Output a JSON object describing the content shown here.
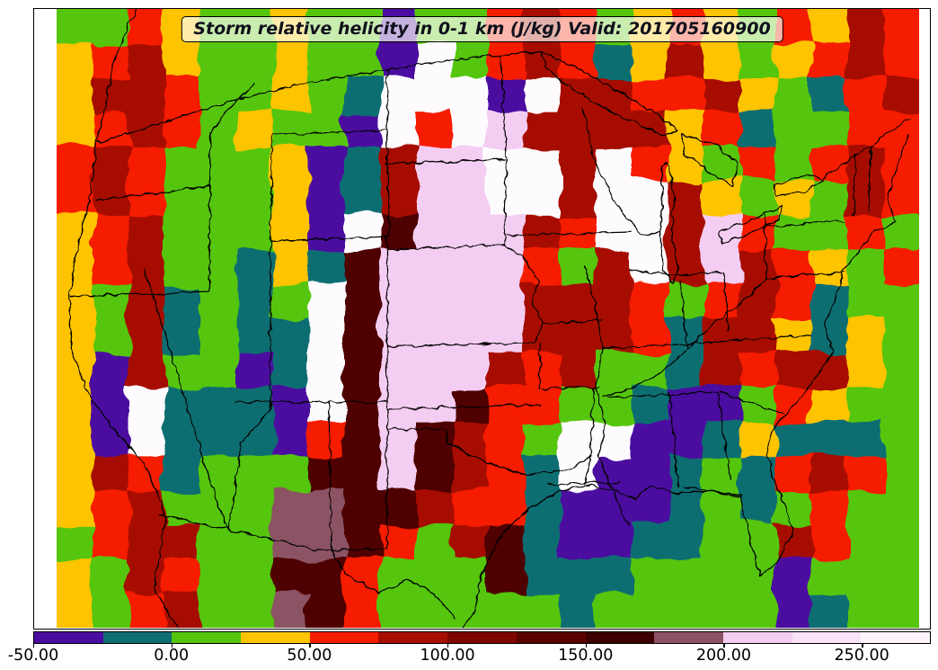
{
  "figure": {
    "title": "Storm relative helicity in 0-1 km (J/kg) Valid: 201705160900",
    "background_color": "#ffffff",
    "frame_border_color": "#000000"
  },
  "map": {
    "description": "Filled-contour map of 0-1 km storm relative helicity (J/kg) over the contiguous United States with state borders, coastlines and Great Lakes outlines",
    "border_line_color": "#000000",
    "palette": {
      "P": "#4B0CA0",
      "T": "#0E6E72",
      "g": "#55C60D",
      "y": "#FFC403",
      "r": "#F51D00",
      "R": "#A60E00",
      "m": "#4F0102",
      "M": "#8B5264",
      "p": "#F4CDF2",
      "W": "#FDFBFE"
    },
    "grid": [
      "ggryggyggPggrRrgyrygryRr",
      "yrRyggyggPWgrRrTyRygyrRr",
      "yRRrggygTWWWPWRRrrRygTrR",
      "yrRrgyggPWrWpRRRRyrTggrr",
      "rRrgggyPTRppWWRWrygrgrRr",
      "rRrgggyPTRppWWRWWRygygRr",
      "yrRgggyPWmpppRrWWRprggrg",
      "yrRggTyTmpppprgRWRpRrygr",
      "ygRTgTgWmppppRRRrgrRrTgg",
      "ygRTgTTWmppppRRRrTRRyTyg",
      "yPRggPTWmpppRrRggTRrRRyg",
      "yPWTTTPWmppmrrggTPPgrygg",
      "yPWTTTPrmpmRrgWWPPTyTTTg",
      "yRrTgggmmpmRrTWPPTgTrRrg",
      "yrRgggMMmmRrrTPPPTgTgrgg",
      "grRRggMMmrgRmTPPTTggRrgg",
      "ygRrggmmrgggmTTTggggPggg",
      "ygrRggMmrgggggTgggggPTgg"
    ],
    "borders": [
      "M150,10 L128,62 L117,112 L107,158 L100,215 L86,272 L76,332 L79,392 L96,436 L126,478 L158,514 L173,545 L183,577 L177,616 L170,652 L189,686 L197,698",
      "M107,158 L152,146 L205,128 L258,112 L315,98 L372,87 L432,77 L492,68 L548,62 L602,58",
      "M602,58 L642,76 L688,102 L726,124 L753,146 L736,150 L700,134 L660,114 L628,94 L606,74 Z",
      "M742,180 L750,220 L746,262 L754,300 L748,316 L738,300 L734,258 L736,214 L734,184 Z",
      "M758,150 L796,162 L820,182 L814,206 L788,192 L762,172 Z",
      "M800,258 L842,242 L872,228 L866,244 L824,264 L802,270 Z",
      "M860,206 L898,194 L916,200 L894,214 L862,216 Z",
      "M916,198 L952,172 L988,148 L1012,132",
      "M1010,150 L996,188 L986,222 L996,246 L972,258 L956,278 L938,300 L930,330 L916,362 L926,392 L906,422 L882,452 L862,472 L852,502 L860,532 L872,562 L882,592 L866,622 L846,641",
      "M846,641 L836,608 L828,576 L824,552 L788,546 L754,549 L722,540 L706,556 L684,546 L652,540 L622,546",
      "M622,546 L586,566 L552,602 L534,642 L527,682 L512,698",
      "M177,572 L232,584 L290,597 L342,610 L368,612 L384,638 L420,660 L452,644 L482,660 L506,688",
      "M107,222 L160,216 L210,210 L233,207",
      "M78,330 L232,324",
      "M232,324 L233,148",
      "M233,148 L256,118 L282,94",
      "M302,150 L430,145",
      "M300,268 L432,263",
      "M302,150 L300,268",
      "M430,145 L432,263",
      "M430,77 L430,145",
      "M428,182 L560,177",
      "M556,62 L562,180",
      "M430,278 L560,272",
      "M562,180 L560,272",
      "M560,272 L584,290 L598,312 L592,338 L604,360 L592,382",
      "M430,385 L592,382",
      "M430,263 L430,447",
      "M262,447 L430,447",
      "M365,447 L368,612",
      "M300,263 L300,455",
      "M300,455 L268,492 L262,530 L258,565 L252,590",
      "M160,298 L238,552",
      "M238,552 L252,590",
      "M430,447 L430,610",
      "M368,612 L430,610",
      "M430,455 L600,450",
      "M430,477 L494,477 L498,492 L524,506 L556,520 L592,528 L634,522 L658,506",
      "M600,382 L600,432",
      "M602,432 L666,430",
      "M660,430 L656,510 L650,538",
      "M608,538 L688,536",
      "M650,295 L662,340 L670,388 L662,430 L672,470 L666,508 L678,540 L690,565 L700,585",
      "M670,388 L790,380 L900,373",
      "M670,442 L798,436",
      "M800,436 L870,460",
      "M744,436 L754,540",
      "M798,436 L812,532",
      "M760,542 L824,550",
      "M852,310 L820,340 L790,362 L764,388 L736,414 L706,430 L676,440",
      "M756,312 L764,388",
      "M804,302 L810,368",
      "M850,240 L852,310",
      "M852,310 L940,302",
      "M852,252 L938,246",
      "M700,300 L756,306",
      "M756,306 L804,302",
      "M648,120 L660,180 L688,230 L712,262 L734,258",
      "M562,262 L700,258",
      "M604,360 L668,356",
      "M952,172 L948,240",
      "M968,160 L966,235"
    ]
  },
  "colorbar": {
    "units": "J/kg",
    "value_min": -50,
    "value_max": 275,
    "segment_size": 25,
    "segment_boundaries": [
      -50,
      -25,
      0,
      25,
      50,
      75,
      100,
      125,
      150,
      175,
      200,
      225,
      250,
      275
    ],
    "segment_colors": [
      "#4B0CA0",
      "#0E6E72",
      "#55C60D",
      "#FFC403",
      "#F51D00",
      "#A60E00",
      "#7E0500",
      "#5A0200",
      "#3D0002",
      "#8B5264",
      "#F4CDF2",
      "#F9E3F8",
      "#FDF4FC"
    ],
    "tick_values": [
      -50,
      0,
      50,
      100,
      150,
      200,
      250
    ],
    "tick_labels": [
      "-50.00",
      "0.00",
      "50.00",
      "100.00",
      "150.00",
      "200.00",
      "250.00"
    ]
  },
  "chart_data": {
    "type": "heatmap",
    "title": "Storm relative helicity in 0-1 km (J/kg) Valid: 201705160900",
    "legend_position": "bottom",
    "scale_boundaries": [
      -50,
      -25,
      0,
      25,
      50,
      75,
      100,
      125,
      150,
      175,
      200,
      225,
      250,
      275
    ],
    "scale_colors": [
      "#4B0CA0",
      "#0E6E72",
      "#55C60D",
      "#FFC403",
      "#F51D00",
      "#A60E00",
      "#7E0500",
      "#5A0200",
      "#3D0002",
      "#8B5264",
      "#F4CDF2",
      "#F9E3F8",
      "#FDF4FC"
    ],
    "tick_labels": [
      "-50.00",
      "0.00",
      "50.00",
      "100.00",
      "150.00",
      "200.00",
      "250.00"
    ]
  }
}
